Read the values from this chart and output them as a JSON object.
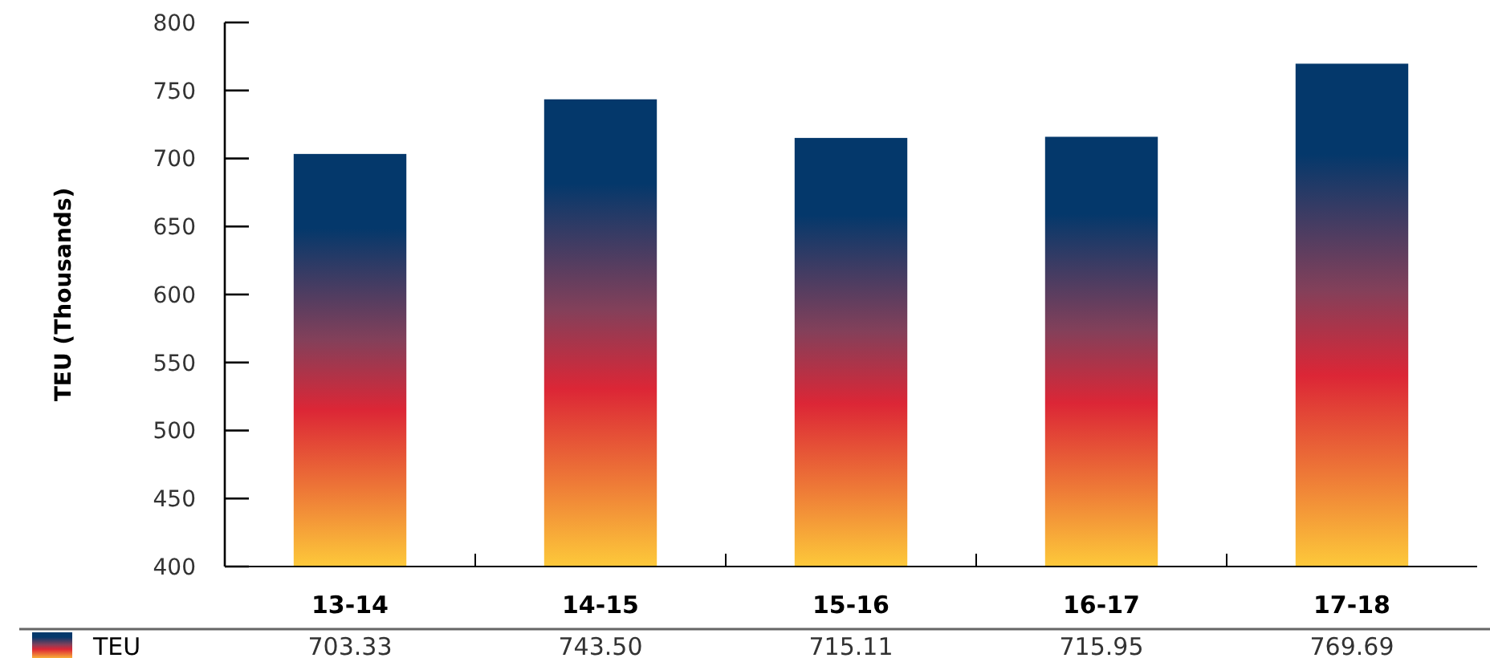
{
  "chart_data": {
    "type": "bar",
    "ylabel": "TEU (Thousands)",
    "categories": [
      "13-14",
      "14-15",
      "15-16",
      "16-17",
      "17-18"
    ],
    "series": [
      {
        "name": "TEU",
        "color": "#04386b",
        "values": [
          703.33,
          743.5,
          715.11,
          715.95,
          769.69
        ],
        "value_labels": [
          "703.33",
          "743.50",
          "715.11",
          "715.95",
          "769.69"
        ]
      }
    ],
    "ylim": [
      400,
      800
    ],
    "yticks": [
      400,
      450,
      500,
      550,
      600,
      650,
      700,
      750,
      800
    ],
    "grid": false,
    "legend": "bottom left"
  }
}
